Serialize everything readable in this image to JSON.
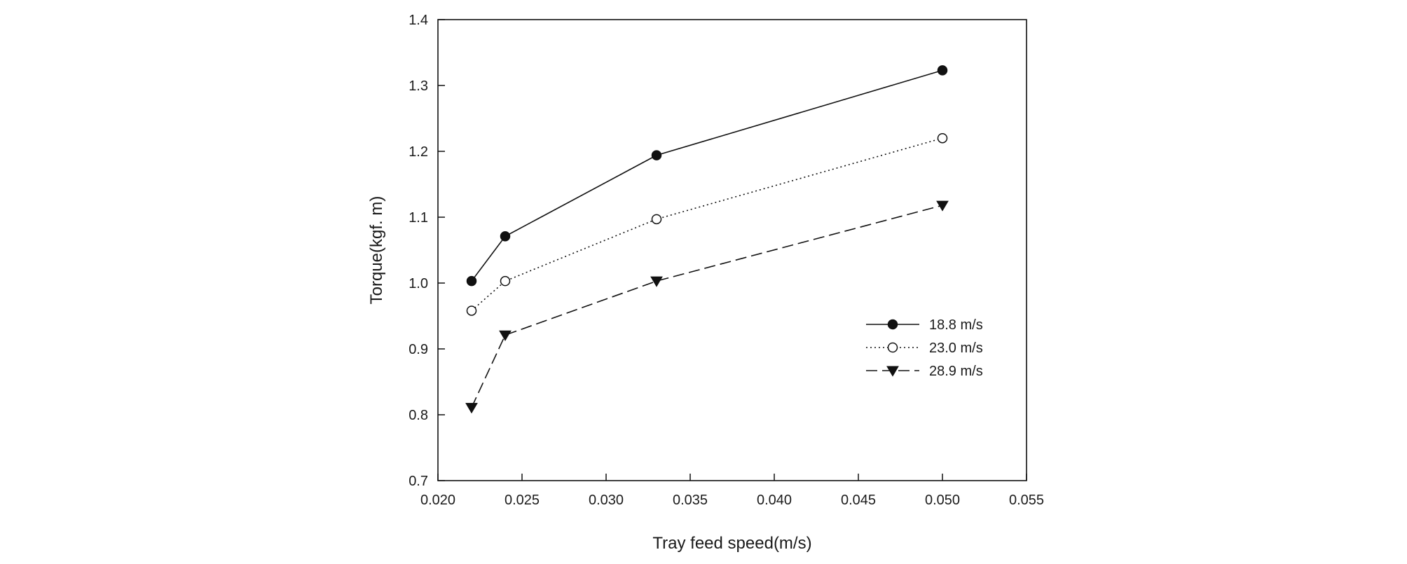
{
  "chart_data": {
    "type": "line",
    "title": "",
    "xlabel": "Tray feed speed(m/s)",
    "ylabel": "Torque(kgf. m)",
    "xlim": [
      0.02,
      0.055
    ],
    "ylim": [
      0.7,
      1.4
    ],
    "x_ticks": [
      "0.020",
      "0.025",
      "0.030",
      "0.035",
      "0.040",
      "0.045",
      "0.050",
      "0.055"
    ],
    "y_ticks": [
      "0.7",
      "0.8",
      "0.9",
      "1.0",
      "1.1",
      "1.2",
      "1.3",
      "1.4"
    ],
    "grid": false,
    "legend_position": "right-middle",
    "x": [
      0.022,
      0.024,
      0.033,
      0.05
    ],
    "series": [
      {
        "name": "18.8 m/s",
        "values": [
          1.003,
          1.071,
          1.194,
          1.323
        ],
        "marker": "filled-circle",
        "line_style": "solid",
        "color": "#111111"
      },
      {
        "name": "23.0 m/s",
        "values": [
          0.958,
          1.003,
          1.097,
          1.22
        ],
        "marker": "open-circle",
        "line_style": "dotted",
        "color": "#111111"
      },
      {
        "name": "28.9 m/s",
        "values": [
          0.811,
          0.921,
          1.003,
          1.118
        ],
        "marker": "filled-triangle-down",
        "line_style": "dashed",
        "color": "#111111"
      }
    ]
  }
}
